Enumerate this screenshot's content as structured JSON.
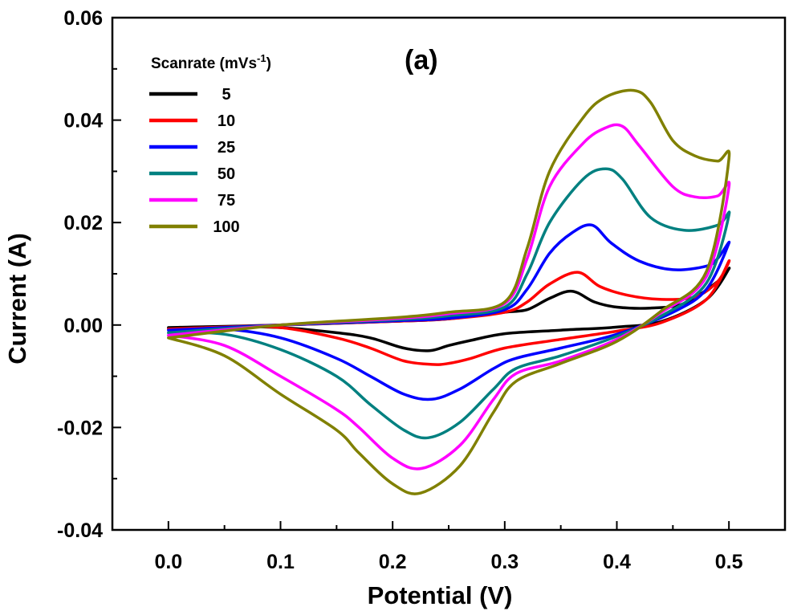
{
  "chart_data": {
    "type": "line",
    "title": "",
    "panel_label": "(a)",
    "xlabel": "Potential (V)",
    "ylabel": "Current (A)",
    "xlim": [
      -0.05,
      0.55
    ],
    "ylim": [
      -0.04,
      0.06
    ],
    "x_ticks": [
      0.0,
      0.1,
      0.2,
      0.3,
      0.4,
      0.5
    ],
    "x_tick_labels": [
      "0.0",
      "0.1",
      "0.2",
      "0.3",
      "0.4",
      "0.5"
    ],
    "y_ticks": [
      -0.04,
      -0.02,
      0.0,
      0.02,
      0.04,
      0.06
    ],
    "y_tick_labels": [
      "-0.04",
      "-0.02",
      "0.00",
      "0.02",
      "0.04",
      "0.06"
    ],
    "grid": false,
    "legend": {
      "title_main": "Scanrate (mVs",
      "title_sup": "-1",
      "title_end": ")",
      "placement": "top-left"
    },
    "series": [
      {
        "name": "5",
        "color": "#000000",
        "x": [
          0.0,
          0.1,
          0.2,
          0.25,
          0.3,
          0.32,
          0.34,
          0.36,
          0.38,
          0.4,
          0.43,
          0.46,
          0.49,
          0.5,
          0.48,
          0.44,
          0.4,
          0.35,
          0.3,
          0.27,
          0.25,
          0.233,
          0.21,
          0.18,
          0.15,
          0.1,
          0.05,
          0.0
        ],
        "y": [
          -0.0005,
          0.0,
          0.0007,
          0.0012,
          0.0025,
          0.003,
          0.0052,
          0.0066,
          0.0045,
          0.0035,
          0.0033,
          0.0042,
          0.0085,
          0.011,
          0.005,
          0.0007,
          -0.0004,
          -0.001,
          -0.0017,
          -0.003,
          -0.004,
          -0.005,
          -0.0045,
          -0.0025,
          -0.0015,
          -0.0005,
          -0.0003,
          -0.0005
        ]
      },
      {
        "name": "10",
        "color": "#ff0000",
        "x": [
          0.0,
          0.1,
          0.2,
          0.25,
          0.3,
          0.32,
          0.34,
          0.365,
          0.385,
          0.41,
          0.44,
          0.47,
          0.49,
          0.5,
          0.48,
          0.44,
          0.4,
          0.35,
          0.3,
          0.27,
          0.25,
          0.235,
          0.21,
          0.18,
          0.15,
          0.1,
          0.05,
          0.0
        ],
        "y": [
          -0.0008,
          0.0,
          0.0007,
          0.0012,
          0.0025,
          0.0045,
          0.008,
          0.0103,
          0.0075,
          0.0058,
          0.005,
          0.0055,
          0.0085,
          0.0125,
          0.005,
          0.0005,
          -0.0012,
          -0.0028,
          -0.0045,
          -0.0065,
          -0.0075,
          -0.0077,
          -0.007,
          -0.0045,
          -0.0025,
          -0.0005,
          -0.0004,
          -0.0008
        ]
      },
      {
        "name": "25",
        "color": "#0000ff",
        "x": [
          0.0,
          0.1,
          0.2,
          0.25,
          0.3,
          0.32,
          0.34,
          0.36,
          0.378,
          0.395,
          0.42,
          0.45,
          0.48,
          0.49,
          0.5,
          0.48,
          0.45,
          0.4,
          0.35,
          0.31,
          0.29,
          0.26,
          0.235,
          0.21,
          0.18,
          0.15,
          0.1,
          0.05,
          0.0
        ],
        "y": [
          -0.001,
          0.0,
          0.0008,
          0.0013,
          0.003,
          0.007,
          0.014,
          0.018,
          0.0195,
          0.016,
          0.0125,
          0.0108,
          0.0115,
          0.013,
          0.016,
          0.007,
          0.0025,
          -0.0018,
          -0.0045,
          -0.0065,
          -0.0085,
          -0.0125,
          -0.0145,
          -0.0135,
          -0.01,
          -0.0065,
          -0.0025,
          -0.0008,
          -0.001
        ]
      },
      {
        "name": "50",
        "color": "#008080",
        "x": [
          0.0,
          0.1,
          0.2,
          0.25,
          0.3,
          0.32,
          0.34,
          0.37,
          0.39,
          0.405,
          0.43,
          0.46,
          0.49,
          0.5,
          0.48,
          0.44,
          0.4,
          0.35,
          0.31,
          0.29,
          0.26,
          0.232,
          0.21,
          0.18,
          0.15,
          0.1,
          0.05,
          0.0
        ],
        "y": [
          -0.0015,
          0.0,
          0.001,
          0.0018,
          0.0035,
          0.01,
          0.02,
          0.0285,
          0.0305,
          0.0285,
          0.021,
          0.0185,
          0.0195,
          0.0215,
          0.0082,
          0.0018,
          -0.0022,
          -0.006,
          -0.0085,
          -0.0125,
          -0.019,
          -0.022,
          -0.0205,
          -0.0155,
          -0.01,
          -0.0048,
          -0.0018,
          -0.0015
        ]
      },
      {
        "name": "75",
        "color": "#ff00ff",
        "x": [
          0.0,
          0.1,
          0.2,
          0.25,
          0.3,
          0.32,
          0.34,
          0.37,
          0.39,
          0.405,
          0.42,
          0.45,
          0.47,
          0.49,
          0.5,
          0.48,
          0.44,
          0.4,
          0.35,
          0.31,
          0.29,
          0.26,
          0.226,
          0.2,
          0.17,
          0.15,
          0.1,
          0.05,
          0.0
        ],
        "y": [
          -0.002,
          0.0,
          0.0012,
          0.0022,
          0.0042,
          0.013,
          0.027,
          0.0355,
          0.0385,
          0.0388,
          0.035,
          0.027,
          0.025,
          0.0252,
          0.027,
          0.0095,
          0.0025,
          -0.0028,
          -0.007,
          -0.0095,
          -0.0145,
          -0.0235,
          -0.028,
          -0.026,
          -0.02,
          -0.0165,
          -0.01,
          -0.004,
          -0.002
        ]
      },
      {
        "name": "100",
        "color": "#808000",
        "x": [
          0.0,
          0.1,
          0.2,
          0.25,
          0.3,
          0.32,
          0.34,
          0.37,
          0.39,
          0.415,
          0.43,
          0.45,
          0.47,
          0.49,
          0.5,
          0.48,
          0.44,
          0.4,
          0.35,
          0.31,
          0.29,
          0.26,
          0.225,
          0.2,
          0.17,
          0.15,
          0.1,
          0.05,
          0.0
        ],
        "y": [
          -0.0025,
          0.0,
          0.0014,
          0.0025,
          0.0045,
          0.015,
          0.03,
          0.0405,
          0.0445,
          0.0458,
          0.0435,
          0.036,
          0.033,
          0.032,
          0.0325,
          0.0105,
          0.0028,
          -0.0032,
          -0.0075,
          -0.011,
          -0.017,
          -0.0275,
          -0.0328,
          -0.031,
          -0.025,
          -0.0205,
          -0.0135,
          -0.006,
          -0.0025
        ]
      }
    ]
  }
}
